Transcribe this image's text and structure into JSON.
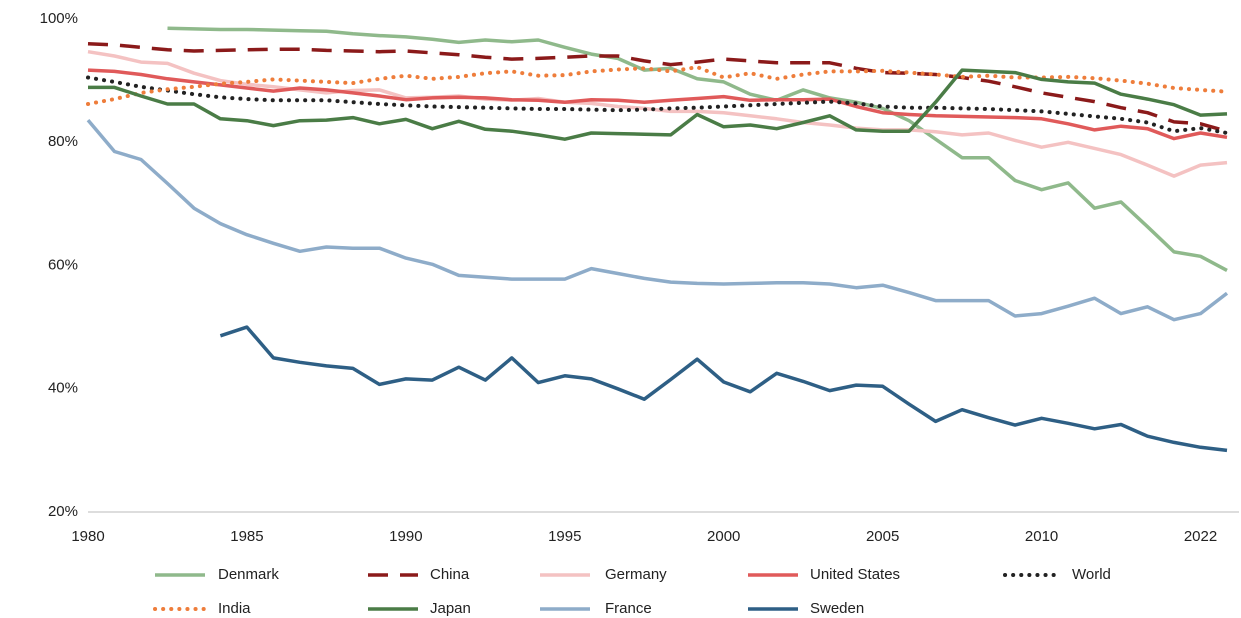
{
  "chart_data": {
    "type": "line",
    "categories": [
      "1980",
      null,
      null,
      null,
      null,
      null,
      "1985",
      null,
      null,
      null,
      null,
      null,
      "1990",
      null,
      null,
      null,
      null,
      null,
      "1995",
      null,
      null,
      null,
      null,
      null,
      "2000",
      null,
      null,
      null,
      null,
      null,
      "2005",
      null,
      null,
      null,
      null,
      null,
      "2010",
      null,
      null,
      null,
      null,
      null,
      "2022",
      null
    ],
    "ylim": [
      20,
      100
    ],
    "yticks": [
      {
        "value": 20,
        "label": "20%"
      },
      {
        "value": 40,
        "label": "40%"
      },
      {
        "value": 60,
        "label": "60%"
      },
      {
        "value": 80,
        "label": "80%"
      },
      {
        "value": 100,
        "label": "100%"
      }
    ],
    "series": [
      {
        "name": "Denmark",
        "color": "#8fb98b",
        "style": "solid",
        "values": [
          null,
          null,
          null,
          98.5,
          98.4,
          98.3,
          98.3,
          98.2,
          98.1,
          98.0,
          97.6,
          97.3,
          97.1,
          96.7,
          96.2,
          96.6,
          96.3,
          96.6,
          95.4,
          94.3,
          93.6,
          91.7,
          92.0,
          90.3,
          89.8,
          87.8,
          86.8,
          88.5,
          87.2,
          86.5,
          85.5,
          83.5,
          80.5,
          77.5,
          77.5,
          73.8,
          72.3,
          73.4,
          69.3,
          70.3,
          66.3,
          62.2,
          61.5,
          59.2
        ]
      },
      {
        "name": "China",
        "color": "#8b1a1a",
        "style": "dashed",
        "values": [
          96.0,
          95.8,
          95.4,
          95.0,
          94.8,
          94.9,
          95.0,
          95.1,
          95.1,
          94.9,
          94.8,
          94.7,
          94.8,
          94.5,
          94.2,
          93.8,
          93.5,
          93.6,
          93.8,
          94.0,
          94.0,
          93.2,
          92.6,
          93.0,
          93.5,
          93.2,
          92.9,
          92.9,
          92.9,
          92.0,
          91.3,
          91.2,
          91.0,
          90.5,
          89.9,
          89.0,
          88.0,
          87.3,
          86.6,
          85.6,
          84.8,
          83.3,
          83.0,
          81.8
        ]
      },
      {
        "name": "Germany",
        "color": "#f4c2c2",
        "style": "solid",
        "values": [
          94.7,
          94.0,
          93.0,
          92.8,
          91.2,
          90.0,
          89.4,
          89.0,
          88.5,
          88.0,
          88.4,
          88.5,
          87.2,
          87.3,
          87.5,
          87.0,
          86.8,
          87.1,
          86.5,
          86.3,
          85.8,
          85.5,
          85.0,
          85.0,
          84.8,
          84.3,
          83.8,
          83.2,
          82.8,
          82.3,
          82.0,
          82.0,
          81.7,
          81.2,
          81.5,
          80.3,
          79.2,
          80.0,
          79.0,
          78.0,
          76.3,
          74.5,
          76.3,
          76.7
        ]
      },
      {
        "name": "United States",
        "color": "#e05a5a",
        "style": "solid",
        "values": [
          91.7,
          91.5,
          91.0,
          90.3,
          89.8,
          89.3,
          88.8,
          88.3,
          88.8,
          88.5,
          88.0,
          87.5,
          86.9,
          87.2,
          87.3,
          87.2,
          86.9,
          86.8,
          86.5,
          86.9,
          86.8,
          86.5,
          86.8,
          87.1,
          87.4,
          86.8,
          86.9,
          86.9,
          87.0,
          85.8,
          84.8,
          84.5,
          84.3,
          84.2,
          84.1,
          84.0,
          83.8,
          83.0,
          82.0,
          82.6,
          82.2,
          80.6,
          81.5,
          80.8
        ]
      },
      {
        "name": "World",
        "color": "#222222",
        "style": "dotted",
        "values": [
          90.5,
          89.8,
          89.0,
          88.4,
          87.8,
          87.3,
          87.0,
          86.8,
          86.8,
          86.8,
          86.5,
          86.2,
          86.0,
          85.8,
          85.7,
          85.6,
          85.5,
          85.4,
          85.4,
          85.3,
          85.2,
          85.3,
          85.5,
          85.6,
          85.8,
          86.0,
          86.2,
          86.4,
          86.6,
          86.3,
          85.8,
          85.6,
          85.6,
          85.5,
          85.4,
          85.2,
          85.0,
          84.6,
          84.2,
          83.8,
          83.2,
          81.8,
          82.3,
          81.5
        ]
      },
      {
        "name": "India",
        "color": "#ee7d3b",
        "style": "dotted",
        "values": [
          86.2,
          87.0,
          88.0,
          88.6,
          89.0,
          89.5,
          89.8,
          90.2,
          90.0,
          89.8,
          89.6,
          90.3,
          90.8,
          90.3,
          90.6,
          91.2,
          91.5,
          90.8,
          90.9,
          91.5,
          91.8,
          92.0,
          91.5,
          92.2,
          90.5,
          91.2,
          90.3,
          91.0,
          91.5,
          91.5,
          91.6,
          91.3,
          91.0,
          90.6,
          90.8,
          90.5,
          90.5,
          90.6,
          90.4,
          90.0,
          89.5,
          88.8,
          88.5,
          88.2
        ]
      },
      {
        "name": "Japan",
        "color": "#4a7c46",
        "style": "solid",
        "values": [
          88.9,
          88.9,
          87.5,
          86.2,
          86.2,
          83.8,
          83.5,
          82.7,
          83.5,
          83.6,
          84.0,
          83.0,
          83.7,
          82.2,
          83.4,
          82.1,
          81.8,
          81.2,
          80.5,
          81.5,
          81.4,
          81.3,
          81.2,
          84.5,
          82.5,
          82.8,
          82.2,
          83.2,
          84.3,
          82.0,
          81.8,
          81.8,
          86.5,
          91.7,
          91.5,
          91.3,
          90.2,
          89.8,
          89.6,
          87.8,
          87.0,
          86.1,
          84.4,
          84.6
        ]
      },
      {
        "name": "France",
        "color": "#8eacc9",
        "style": "solid",
        "values": [
          83.6,
          78.5,
          77.2,
          73.3,
          69.3,
          66.8,
          65.0,
          63.6,
          62.3,
          63.0,
          62.8,
          62.8,
          61.2,
          60.2,
          58.4,
          58.1,
          57.8,
          57.8,
          57.8,
          59.5,
          58.7,
          57.9,
          57.3,
          57.1,
          57.0,
          57.1,
          57.2,
          57.2,
          57.0,
          56.4,
          56.8,
          55.6,
          54.3,
          54.3,
          54.3,
          51.8,
          52.2,
          53.4,
          54.7,
          52.2,
          53.3,
          51.2,
          52.2,
          55.5
        ]
      },
      {
        "name": "Sweden",
        "color": "#2e5f85",
        "style": "solid",
        "values": [
          null,
          null,
          null,
          null,
          null,
          48.6,
          50.0,
          45.0,
          44.3,
          43.7,
          43.3,
          40.7,
          41.6,
          41.4,
          43.5,
          41.4,
          45.0,
          41.0,
          42.1,
          41.6,
          40.0,
          38.3,
          41.5,
          44.8,
          41.1,
          39.5,
          42.5,
          41.2,
          39.7,
          40.6,
          40.4,
          37.5,
          34.7,
          36.6,
          35.3,
          34.1,
          35.2,
          34.4,
          33.5,
          34.2,
          32.3,
          31.3,
          30.5,
          30.0
        ]
      }
    ]
  }
}
